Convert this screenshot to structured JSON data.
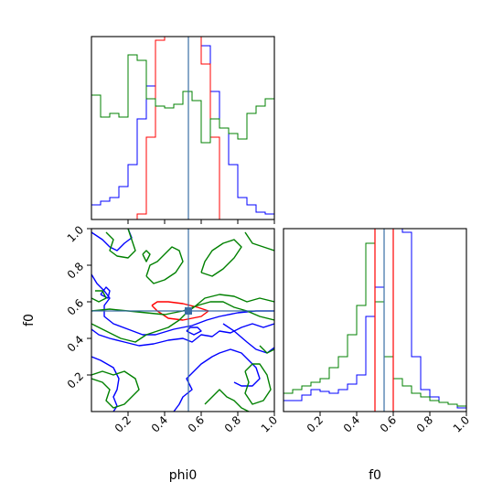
{
  "chart_data": [
    {
      "panel": "phi0 marginal histogram",
      "type": "step-histogram",
      "xlim": [
        0,
        1
      ],
      "bins": 20,
      "truth_x": 0.53,
      "truth_color": "#3a6ea5",
      "series": [
        {
          "color": "#0000ff",
          "values": [
            0.08,
            0.1,
            0.12,
            0.18,
            0.3,
            0.55,
            0.73,
            0.98,
            1.05,
            1.05,
            1.05,
            1.05,
            0.95,
            0.7,
            0.5,
            0.3,
            0.12,
            0.08,
            0.04,
            0.03
          ]
        },
        {
          "color": "#ff0000",
          "values": [
            0.0,
            0.0,
            0.0,
            0.0,
            0.0,
            0.03,
            0.45,
            0.98,
            1.05,
            1.05,
            1.05,
            1.05,
            0.85,
            0.45,
            0.0,
            0.0,
            0.0,
            0.0,
            0.0,
            0.0
          ]
        },
        {
          "color": "#008000",
          "values": [
            0.68,
            0.56,
            0.58,
            0.56,
            0.9,
            0.87,
            0.66,
            0.62,
            0.61,
            0.63,
            0.7,
            0.65,
            0.42,
            0.55,
            0.5,
            0.47,
            0.44,
            0.58,
            0.62,
            0.66
          ]
        }
      ]
    },
    {
      "panel": "phi0 vs f0 2D contours",
      "type": "contour",
      "xlim": [
        0,
        1
      ],
      "ylim": [
        0,
        1
      ],
      "xlabel": "phi0",
      "ylabel": "f0",
      "xticks": [
        "0.2",
        "0.4",
        "0.6",
        "0.8",
        "1.0"
      ],
      "yticks": [
        "0.2",
        "0.4",
        "0.6",
        "0.8",
        "1.0"
      ],
      "truth_point": [
        0.53,
        0.55
      ],
      "truth_color": "#3a6ea5",
      "contours": [
        {
          "color": "#ff0000",
          "points": [
            [
              0.33,
              0.58
            ],
            [
              0.36,
              0.6
            ],
            [
              0.42,
              0.6
            ],
            [
              0.5,
              0.59
            ],
            [
              0.58,
              0.57
            ],
            [
              0.64,
              0.55
            ],
            [
              0.6,
              0.52
            ],
            [
              0.5,
              0.5
            ],
            [
              0.42,
              0.51
            ],
            [
              0.36,
              0.55
            ],
            [
              0.33,
              0.58
            ]
          ]
        },
        {
          "color": "#0000ff",
          "points": [
            [
              0.0,
              0.75
            ],
            [
              0.03,
              0.7
            ],
            [
              0.07,
              0.66
            ],
            [
              0.1,
              0.62
            ],
            [
              0.07,
              0.58
            ],
            [
              0.07,
              0.52
            ],
            [
              0.12,
              0.48
            ],
            [
              0.2,
              0.45
            ],
            [
              0.28,
              0.42
            ],
            [
              0.35,
              0.42
            ],
            [
              0.45,
              0.45
            ],
            [
              0.55,
              0.47
            ],
            [
              0.63,
              0.5
            ],
            [
              0.7,
              0.52
            ],
            [
              0.8,
              0.54
            ],
            [
              0.9,
              0.55
            ],
            [
              1.0,
              0.55
            ]
          ]
        },
        {
          "color": "#0000ff",
          "points": [
            [
              0.0,
              0.45
            ],
            [
              0.04,
              0.42
            ],
            [
              0.1,
              0.4
            ],
            [
              0.18,
              0.38
            ],
            [
              0.26,
              0.36
            ],
            [
              0.34,
              0.37
            ],
            [
              0.42,
              0.39
            ],
            [
              0.5,
              0.4
            ],
            [
              0.55,
              0.38
            ],
            [
              0.6,
              0.42
            ],
            [
              0.66,
              0.41
            ],
            [
              0.7,
              0.44
            ],
            [
              0.76,
              0.43
            ],
            [
              0.82,
              0.46
            ],
            [
              0.88,
              0.48
            ],
            [
              0.94,
              0.46
            ],
            [
              1.0,
              0.48
            ]
          ]
        },
        {
          "color": "#0000ff",
          "points": [
            [
              0.0,
              0.98
            ],
            [
              0.06,
              0.94
            ],
            [
              0.1,
              0.9
            ],
            [
              0.14,
              0.88
            ],
            [
              0.18,
              0.92
            ],
            [
              0.22,
              0.95
            ],
            [
              0.2,
              1.0
            ]
          ]
        },
        {
          "color": "#0000ff",
          "points": [
            [
              0.0,
              0.3
            ],
            [
              0.05,
              0.28
            ],
            [
              0.12,
              0.24
            ],
            [
              0.15,
              0.18
            ],
            [
              0.14,
              0.12
            ],
            [
              0.12,
              0.08
            ],
            [
              0.14,
              0.03
            ],
            [
              0.12,
              0.0
            ]
          ]
        },
        {
          "color": "#0000ff",
          "points": [
            [
              0.45,
              0.0
            ],
            [
              0.48,
              0.04
            ],
            [
              0.5,
              0.08
            ],
            [
              0.55,
              0.12
            ],
            [
              0.52,
              0.18
            ],
            [
              0.56,
              0.22
            ],
            [
              0.6,
              0.26
            ],
            [
              0.66,
              0.3
            ],
            [
              0.7,
              0.32
            ],
            [
              0.76,
              0.34
            ],
            [
              0.82,
              0.32
            ],
            [
              0.86,
              0.28
            ],
            [
              0.9,
              0.24
            ],
            [
              0.92,
              0.18
            ],
            [
              0.88,
              0.14
            ],
            [
              0.82,
              0.14
            ],
            [
              0.78,
              0.16
            ]
          ]
        },
        {
          "color": "#0000ff",
          "points": [
            [
              0.72,
              0.48
            ],
            [
              0.78,
              0.44
            ],
            [
              0.85,
              0.38
            ],
            [
              0.9,
              0.34
            ],
            [
              0.96,
              0.32
            ],
            [
              1.0,
              0.35
            ]
          ]
        },
        {
          "color": "#0000ff",
          "points": [
            [
              0.52,
              0.44
            ],
            [
              0.56,
              0.42
            ],
            [
              0.6,
              0.44
            ],
            [
              0.58,
              0.46
            ],
            [
              0.54,
              0.46
            ],
            [
              0.52,
              0.44
            ]
          ]
        },
        {
          "color": "#0000ff",
          "points": [
            [
              0.05,
              0.64
            ],
            [
              0.08,
              0.68
            ],
            [
              0.1,
              0.66
            ],
            [
              0.09,
              0.62
            ],
            [
              0.05,
              0.64
            ]
          ]
        },
        {
          "color": "#008000",
          "points": [
            [
              0.0,
              0.55
            ],
            [
              0.1,
              0.56
            ],
            [
              0.2,
              0.55
            ],
            [
              0.3,
              0.54
            ],
            [
              0.4,
              0.53
            ],
            [
              0.5,
              0.55
            ],
            [
              0.58,
              0.58
            ],
            [
              0.65,
              0.6
            ],
            [
              0.72,
              0.6
            ],
            [
              0.78,
              0.57
            ],
            [
              0.85,
              0.55
            ],
            [
              0.92,
              0.52
            ],
            [
              1.0,
              0.5
            ]
          ]
        },
        {
          "color": "#008000",
          "points": [
            [
              0.0,
              0.48
            ],
            [
              0.08,
              0.44
            ],
            [
              0.16,
              0.4
            ],
            [
              0.24,
              0.38
            ],
            [
              0.3,
              0.42
            ],
            [
              0.36,
              0.44
            ],
            [
              0.42,
              0.46
            ],
            [
              0.48,
              0.5
            ],
            [
              0.52,
              0.54
            ],
            [
              0.56,
              0.57
            ],
            [
              0.62,
              0.62
            ],
            [
              0.7,
              0.64
            ],
            [
              0.78,
              0.63
            ],
            [
              0.85,
              0.6
            ],
            [
              0.92,
              0.62
            ],
            [
              1.0,
              0.6
            ]
          ]
        },
        {
          "color": "#008000",
          "points": [
            [
              0.08,
              0.98
            ],
            [
              0.12,
              0.94
            ],
            [
              0.1,
              0.88
            ],
            [
              0.14,
              0.85
            ],
            [
              0.2,
              0.84
            ],
            [
              0.24,
              0.88
            ],
            [
              0.22,
              0.94
            ],
            [
              0.2,
              1.0
            ]
          ]
        },
        {
          "color": "#008000",
          "points": [
            [
              0.3,
              0.74
            ],
            [
              0.34,
              0.7
            ],
            [
              0.4,
              0.72
            ],
            [
              0.46,
              0.76
            ],
            [
              0.5,
              0.82
            ],
            [
              0.48,
              0.88
            ],
            [
              0.44,
              0.9
            ],
            [
              0.4,
              0.86
            ],
            [
              0.36,
              0.82
            ],
            [
              0.32,
              0.8
            ],
            [
              0.3,
              0.74
            ]
          ]
        },
        {
          "color": "#008000",
          "points": [
            [
              0.6,
              0.76
            ],
            [
              0.66,
              0.74
            ],
            [
              0.72,
              0.78
            ],
            [
              0.78,
              0.84
            ],
            [
              0.82,
              0.9
            ],
            [
              0.78,
              0.94
            ],
            [
              0.72,
              0.92
            ],
            [
              0.66,
              0.88
            ],
            [
              0.62,
              0.82
            ],
            [
              0.6,
              0.76
            ]
          ]
        },
        {
          "color": "#008000",
          "points": [
            [
              0.84,
              0.98
            ],
            [
              0.88,
              0.92
            ],
            [
              0.94,
              0.9
            ],
            [
              1.0,
              0.88
            ]
          ]
        },
        {
          "color": "#008000",
          "points": [
            [
              0.28,
              0.86
            ],
            [
              0.3,
              0.82
            ],
            [
              0.32,
              0.86
            ],
            [
              0.3,
              0.88
            ],
            [
              0.28,
              0.86
            ]
          ]
        },
        {
          "color": "#008000",
          "points": [
            [
              0.0,
              0.18
            ],
            [
              0.06,
              0.16
            ],
            [
              0.1,
              0.12
            ],
            [
              0.08,
              0.06
            ],
            [
              0.12,
              0.02
            ],
            [
              0.18,
              0.04
            ],
            [
              0.22,
              0.08
            ],
            [
              0.26,
              0.12
            ],
            [
              0.24,
              0.18
            ],
            [
              0.18,
              0.22
            ],
            [
              0.12,
              0.2
            ],
            [
              0.06,
              0.22
            ],
            [
              0.0,
              0.2
            ]
          ]
        },
        {
          "color": "#008000",
          "points": [
            [
              0.62,
              0.04
            ],
            [
              0.66,
              0.08
            ],
            [
              0.7,
              0.12
            ],
            [
              0.74,
              0.08
            ],
            [
              0.78,
              0.06
            ],
            [
              0.82,
              0.02
            ],
            [
              0.86,
              0.0
            ]
          ]
        },
        {
          "color": "#008000",
          "points": [
            [
              0.84,
              0.22
            ],
            [
              0.86,
              0.16
            ],
            [
              0.84,
              0.1
            ],
            [
              0.88,
              0.04
            ],
            [
              0.94,
              0.06
            ],
            [
              0.98,
              0.12
            ],
            [
              0.96,
              0.2
            ],
            [
              0.92,
              0.26
            ],
            [
              0.88,
              0.26
            ],
            [
              0.84,
              0.22
            ]
          ]
        },
        {
          "color": "#008000",
          "points": [
            [
              0.0,
              0.62
            ],
            [
              0.04,
              0.6
            ],
            [
              0.08,
              0.62
            ],
            [
              0.06,
              0.66
            ],
            [
              0.02,
              0.66
            ]
          ]
        },
        {
          "color": "#008000",
          "points": [
            [
              0.92,
              0.36
            ],
            [
              0.96,
              0.32
            ],
            [
              1.0,
              0.34
            ]
          ]
        }
      ]
    },
    {
      "panel": "f0 marginal histogram",
      "type": "step-histogram",
      "xlim": [
        0,
        1
      ],
      "xlabel": "f0",
      "xticks": [
        "0.2",
        "0.4",
        "0.6",
        "0.8",
        "1.0"
      ],
      "bins": 20,
      "truth_x": 0.55,
      "truth_color": "#3a6ea5",
      "extra_lines": [
        {
          "x": 0.5,
          "color": "#ff0000"
        },
        {
          "x": 0.6,
          "color": "#ff0000"
        }
      ],
      "series": [
        {
          "color": "#0000ff",
          "values": [
            0.06,
            0.06,
            0.09,
            0.12,
            0.11,
            0.1,
            0.12,
            0.15,
            0.2,
            0.52,
            0.68,
            1.0,
            1.05,
            0.98,
            0.3,
            0.12,
            0.08,
            0.05,
            0.04,
            0.02
          ]
        },
        {
          "color": "#008000",
          "values": [
            0.1,
            0.12,
            0.14,
            0.16,
            0.18,
            0.24,
            0.3,
            0.42,
            0.58,
            0.92,
            0.6,
            0.3,
            0.18,
            0.14,
            0.1,
            0.08,
            0.06,
            0.05,
            0.04,
            0.03
          ]
        }
      ]
    }
  ],
  "labels": {
    "phi0": "phi0",
    "f0": "f0"
  }
}
